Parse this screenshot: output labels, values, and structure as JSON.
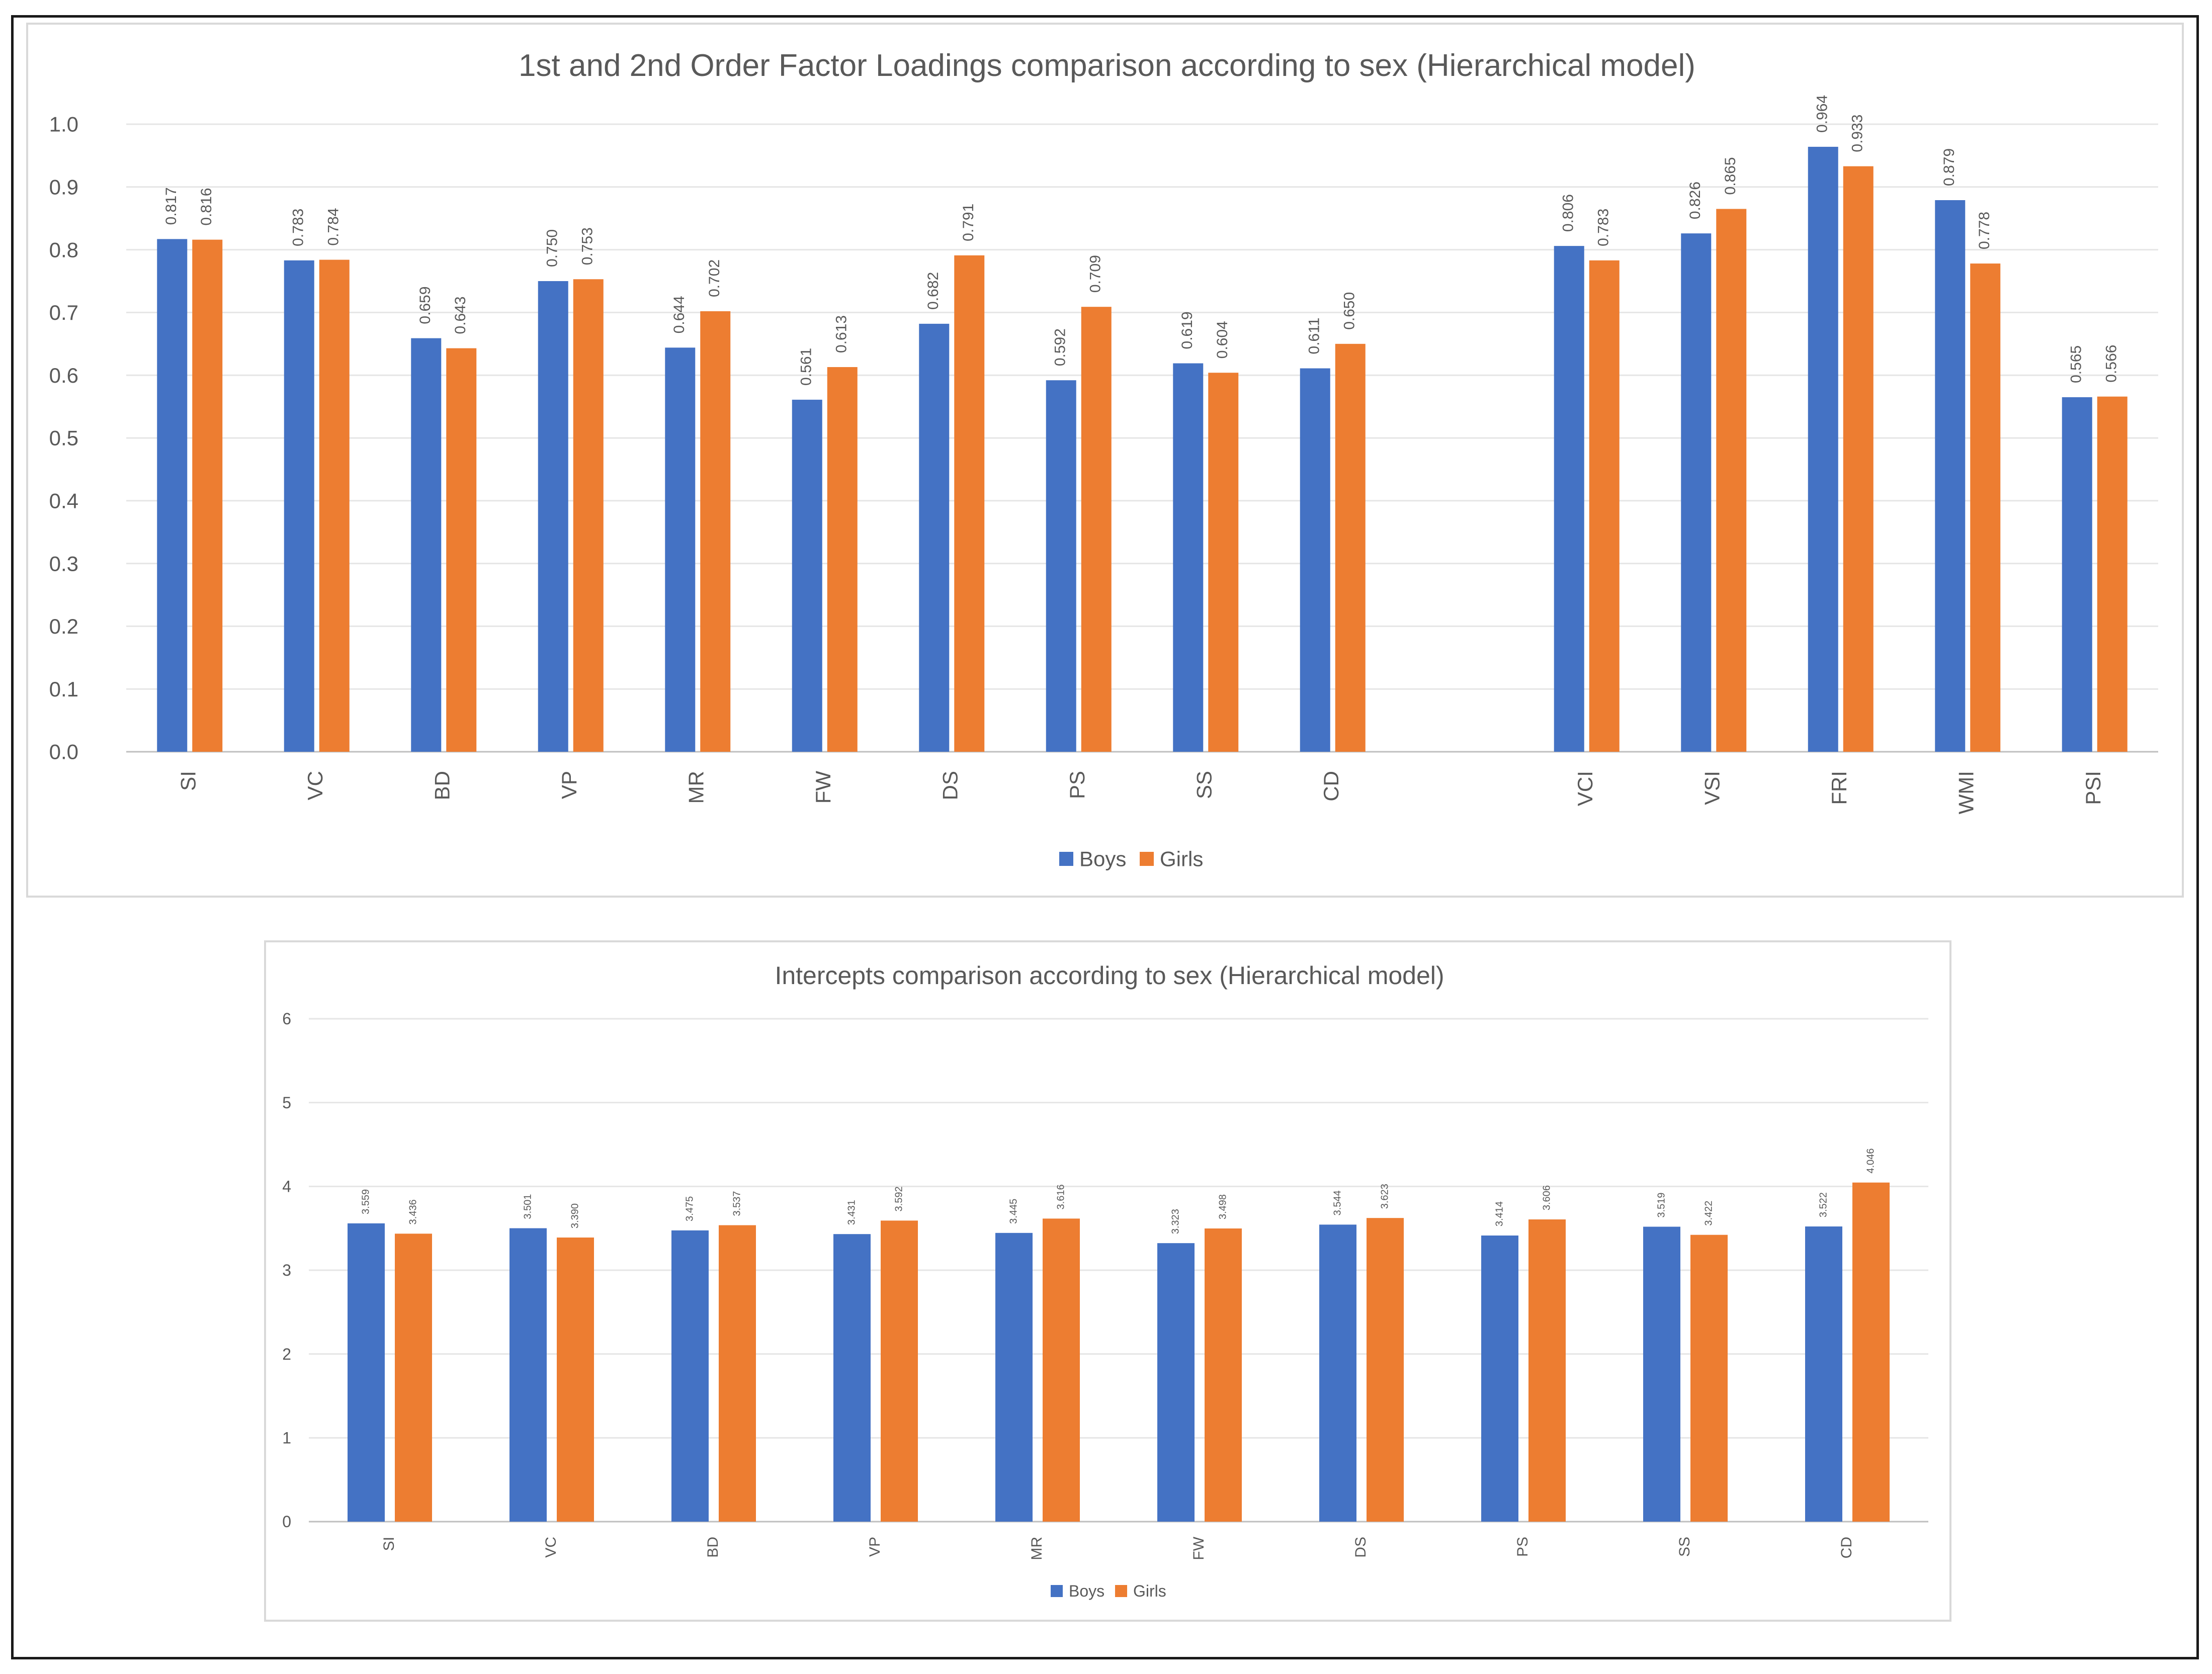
{
  "chart_data": [
    {
      "type": "bar",
      "title": "1st and 2nd Order Factor Loadings comparison according to sex (Hierarchical model)",
      "xlabel": "",
      "ylabel": "",
      "ylim": [
        0,
        1.0
      ],
      "yticks": [
        "0.0",
        "0.1",
        "0.2",
        "0.3",
        "0.4",
        "0.5",
        "0.6",
        "0.7",
        "0.8",
        "0.9",
        "1.0"
      ],
      "categories": [
        "SI",
        "VC",
        "BD",
        "VP",
        "MR",
        "FW",
        "DS",
        "PS",
        "SS",
        "CD",
        "",
        "VCI",
        "VSI",
        "FRI",
        "WMI",
        "PSI"
      ],
      "series": [
        {
          "name": "Boys",
          "color": "#4472C4",
          "values": [
            0.817,
            0.783,
            0.659,
            0.75,
            0.644,
            0.561,
            0.682,
            0.592,
            0.619,
            0.611,
            null,
            0.806,
            0.826,
            0.964,
            0.879,
            0.565
          ],
          "labels": [
            "0.817",
            "0.783",
            "0.659",
            "0.750",
            "0.644",
            "0.561",
            "0.682",
            "0.592",
            "0.619",
            "0.611",
            "",
            "0.806",
            "0.826",
            "0.964",
            "0.879",
            "0.565"
          ]
        },
        {
          "name": "Girls",
          "color": "#ED7D31",
          "values": [
            0.816,
            0.784,
            0.643,
            0.753,
            0.702,
            0.613,
            0.791,
            0.709,
            0.604,
            0.65,
            null,
            0.783,
            0.865,
            0.933,
            0.778,
            0.566
          ],
          "labels": [
            "0.816",
            "0.784",
            "0.643",
            "0.753",
            "0.702",
            "0.613",
            "0.791",
            "0.709",
            "0.604",
            "0.650",
            "",
            "0.783",
            "0.865",
            "0.933",
            "0.778",
            "0.566"
          ]
        }
      ],
      "grid": true,
      "legend": "bottom"
    },
    {
      "type": "bar",
      "title": "Intercepts comparison according to sex (Hierarchical model)",
      "xlabel": "",
      "ylabel": "",
      "ylim": [
        0,
        6
      ],
      "yticks": [
        "0",
        "1",
        "2",
        "3",
        "4",
        "5",
        "6"
      ],
      "categories": [
        "SI",
        "VC",
        "BD",
        "VP",
        "MR",
        "FW",
        "DS",
        "PS",
        "SS",
        "CD"
      ],
      "series": [
        {
          "name": "Boys",
          "color": "#4472C4",
          "values": [
            3.559,
            3.501,
            3.475,
            3.431,
            3.445,
            3.323,
            3.544,
            3.414,
            3.519,
            3.522
          ],
          "labels": [
            "3.559",
            "3.501",
            "3.475",
            "3.431",
            "3.445",
            "3.323",
            "3.544",
            "3.414",
            "3.519",
            "3.522"
          ]
        },
        {
          "name": "Girls",
          "color": "#ED7D31",
          "values": [
            3.436,
            3.39,
            3.537,
            3.592,
            3.616,
            3.498,
            3.623,
            3.606,
            3.422,
            4.046
          ],
          "labels": [
            "3.436",
            "3.390",
            "3.537",
            "3.592",
            "3.616",
            "3.498",
            "3.623",
            "3.606",
            "3.422",
            "4.046"
          ]
        }
      ],
      "grid": true,
      "legend": "bottom"
    }
  ]
}
